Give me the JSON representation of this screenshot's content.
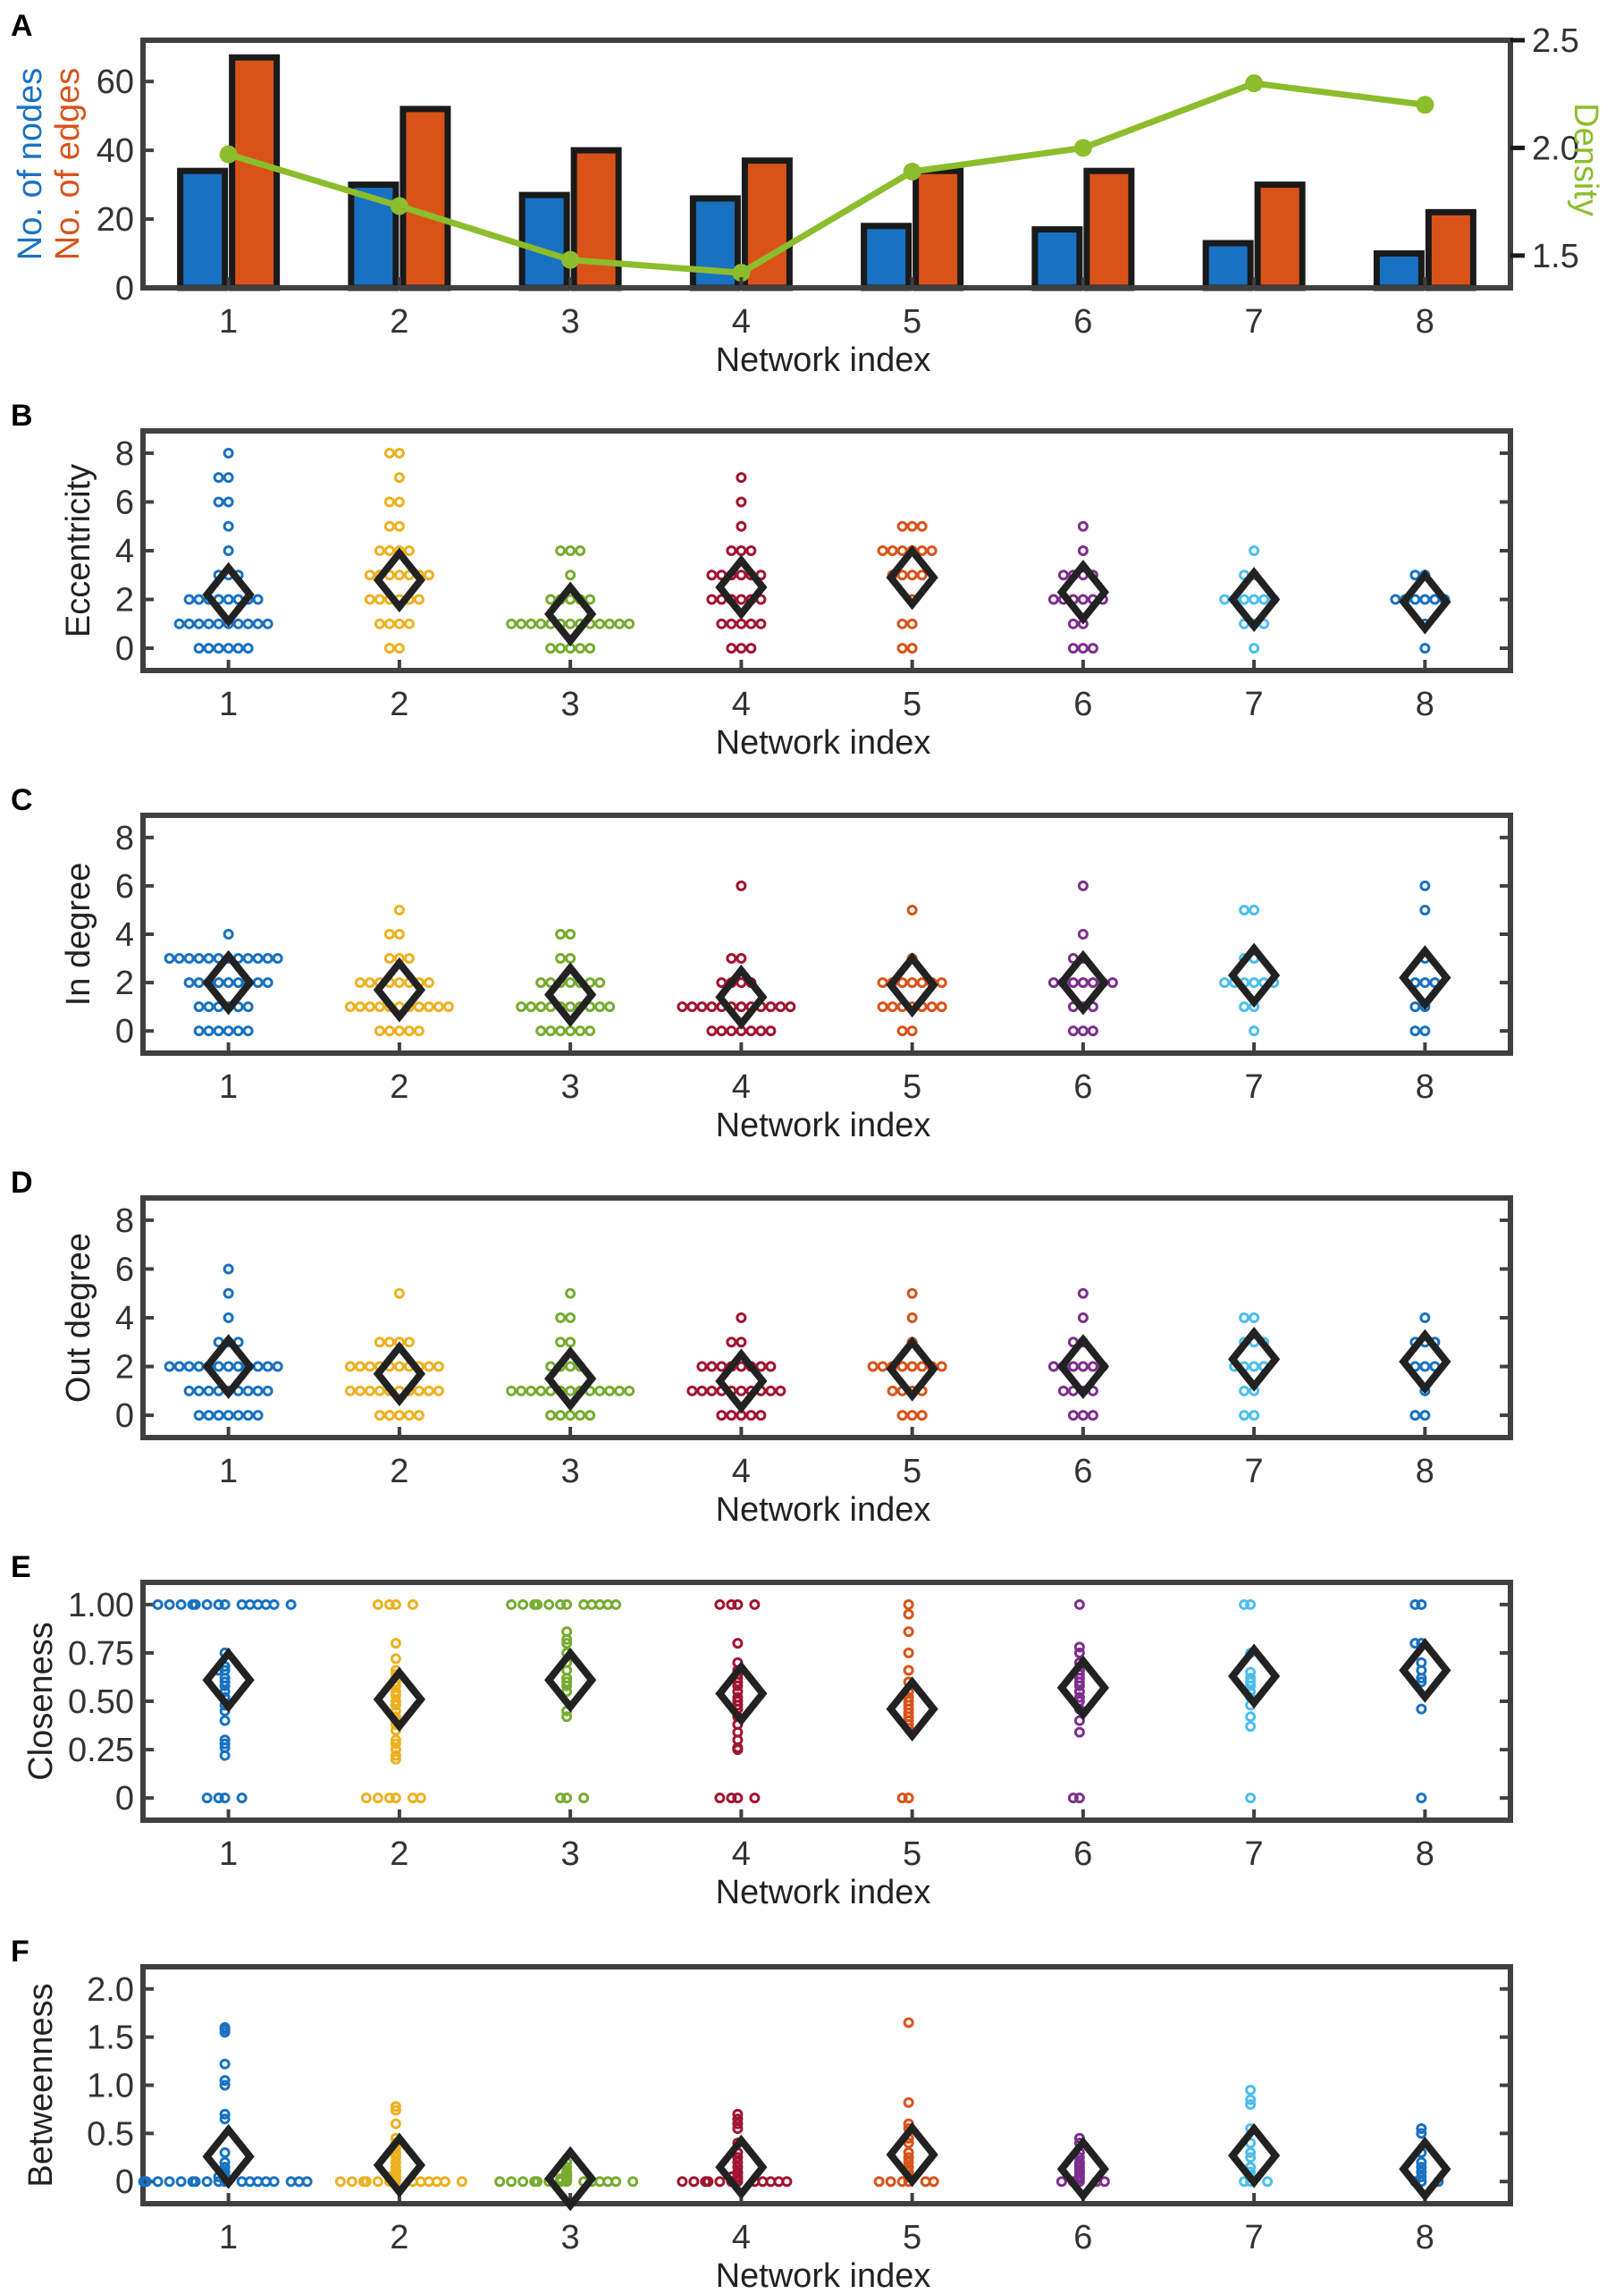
{
  "chart_data": [
    {
      "panel": "A",
      "type": "bar+line",
      "categories": [
        "1",
        "2",
        "3",
        "4",
        "5",
        "6",
        "7",
        "8"
      ],
      "series": [
        {
          "name": "No. of nodes",
          "color": "#1872c1",
          "values": [
            34,
            30,
            27,
            26,
            18,
            17,
            13,
            10
          ]
        },
        {
          "name": "No. of edges",
          "color": "#d95319",
          "values": [
            67,
            52,
            40,
            37,
            34,
            34,
            30,
            22
          ]
        },
        {
          "name": "Density",
          "color": "#8cbd2c",
          "axis": "right",
          "values": [
            1.97,
            1.73,
            1.48,
            1.42,
            1.89,
            2.0,
            2.3,
            2.2
          ]
        }
      ],
      "xlabel": "Network index",
      "ylabel_parts": [
        "No. of nodes",
        "No. of edges"
      ],
      "ylabel_right": "Density",
      "ylim": [
        0,
        72
      ],
      "yticks": [
        "0",
        "20",
        "40",
        "60"
      ],
      "ylim_right": [
        1.35,
        2.5
      ],
      "yticks_right": [
        "1.5",
        "2.0",
        "2.5"
      ]
    },
    {
      "panel": "B",
      "type": "scatter",
      "ylabel": "Eccentricity",
      "xlabel": "Network index",
      "categories": [
        "1",
        "2",
        "3",
        "4",
        "5",
        "6",
        "7",
        "8"
      ],
      "ylim": [
        -0.4,
        8.4
      ],
      "yticks": [
        "0",
        "2",
        "4",
        "6",
        "8"
      ],
      "means": [
        2.2,
        2.8,
        1.4,
        2.5,
        2.9,
        2.3,
        2.0,
        1.9
      ],
      "points": [
        [
          8,
          7,
          7,
          6,
          6,
          5,
          4,
          3,
          3,
          3,
          2,
          2,
          2,
          2,
          2,
          2,
          2,
          2,
          1,
          1,
          1,
          1,
          1,
          1,
          1,
          1,
          1,
          1,
          0,
          0,
          0,
          0,
          0,
          0
        ],
        [
          8,
          8,
          7,
          6,
          6,
          5,
          5,
          4,
          4,
          4,
          4,
          3,
          3,
          3,
          3,
          3,
          3,
          3,
          2,
          2,
          2,
          2,
          2,
          2,
          1,
          1,
          1,
          1,
          0,
          0
        ],
        [
          4,
          4,
          4,
          3,
          2,
          2,
          2,
          2,
          2,
          1,
          1,
          1,
          1,
          1,
          1,
          1,
          1,
          1,
          1,
          1,
          1,
          1,
          0,
          0,
          0,
          0,
          0
        ],
        [
          7,
          6,
          5,
          4,
          4,
          4,
          3,
          3,
          3,
          3,
          3,
          3,
          2,
          2,
          2,
          2,
          2,
          2,
          1,
          1,
          1,
          1,
          1,
          0,
          0,
          0
        ],
        [
          5,
          5,
          5,
          4,
          4,
          4,
          4,
          4,
          4,
          3,
          3,
          3,
          3,
          2,
          1,
          1,
          0,
          0
        ],
        [
          5,
          4,
          3,
          3,
          3,
          3,
          2,
          2,
          2,
          2,
          2,
          2,
          1,
          1,
          0,
          0,
          0
        ],
        [
          4,
          3,
          3,
          2,
          2,
          2,
          2,
          2,
          2,
          1,
          1,
          1,
          0
        ],
        [
          3,
          3,
          2,
          2,
          2,
          2,
          2,
          2,
          1,
          0
        ]
      ]
    },
    {
      "panel": "C",
      "type": "scatter",
      "ylabel": "In degree",
      "xlabel": "Network index",
      "categories": [
        "1",
        "2",
        "3",
        "4",
        "5",
        "6",
        "7",
        "8"
      ],
      "ylim": [
        -0.4,
        8.4
      ],
      "yticks": [
        "0",
        "2",
        "4",
        "6",
        "8"
      ],
      "means": [
        2.0,
        1.7,
        1.5,
        1.4,
        1.9,
        2.0,
        2.3,
        2.2
      ],
      "points": [
        [
          4,
          3,
          3,
          3,
          3,
          3,
          3,
          3,
          3,
          3,
          3,
          3,
          3,
          2,
          2,
          2,
          2,
          2,
          2,
          2,
          2,
          2,
          1,
          1,
          1,
          1,
          1,
          1,
          0,
          0,
          0,
          0,
          0,
          0
        ],
        [
          5,
          4,
          4,
          3,
          3,
          3,
          2,
          2,
          2,
          2,
          2,
          2,
          2,
          2,
          1,
          1,
          1,
          1,
          1,
          1,
          1,
          1,
          1,
          1,
          1,
          0,
          0,
          0,
          0,
          0
        ],
        [
          4,
          4,
          3,
          3,
          2,
          2,
          2,
          2,
          2,
          2,
          2,
          1,
          1,
          1,
          1,
          1,
          1,
          1,
          1,
          1,
          1,
          0,
          0,
          0,
          0,
          0,
          0
        ],
        [
          6,
          3,
          3,
          2,
          2,
          2,
          2,
          1,
          1,
          1,
          1,
          1,
          1,
          1,
          1,
          1,
          1,
          1,
          1,
          0,
          0,
          0,
          0,
          0,
          0,
          0
        ],
        [
          5,
          3,
          2,
          2,
          2,
          2,
          2,
          2,
          2,
          1,
          1,
          1,
          1,
          1,
          1,
          1,
          0,
          0
        ],
        [
          6,
          4,
          3,
          3,
          2,
          2,
          2,
          2,
          2,
          2,
          2,
          1,
          1,
          1,
          0,
          0,
          0
        ],
        [
          5,
          5,
          3,
          3,
          2,
          2,
          2,
          2,
          2,
          2,
          1,
          1,
          0
        ],
        [
          6,
          5,
          3,
          2,
          2,
          2,
          1,
          1,
          0,
          0
        ]
      ]
    },
    {
      "panel": "D",
      "type": "scatter",
      "ylabel": "Out degree",
      "xlabel": "Network index",
      "categories": [
        "1",
        "2",
        "3",
        "4",
        "5",
        "6",
        "7",
        "8"
      ],
      "ylim": [
        -0.4,
        8.4
      ],
      "yticks": [
        "0",
        "2",
        "4",
        "6",
        "8"
      ],
      "means": [
        2.0,
        1.7,
        1.5,
        1.4,
        1.9,
        2.0,
        2.3,
        2.2
      ],
      "points": [
        [
          6,
          5,
          4,
          3,
          3,
          3,
          2,
          2,
          2,
          2,
          2,
          2,
          2,
          2,
          2,
          2,
          2,
          2,
          1,
          1,
          1,
          1,
          1,
          1,
          1,
          1,
          1,
          0,
          0,
          0,
          0,
          0,
          0,
          0
        ],
        [
          5,
          3,
          3,
          3,
          3,
          2,
          2,
          2,
          2,
          2,
          2,
          2,
          2,
          2,
          2,
          1,
          1,
          1,
          1,
          1,
          1,
          1,
          1,
          1,
          1,
          0,
          0,
          0,
          0,
          0
        ],
        [
          5,
          4,
          4,
          3,
          3,
          2,
          2,
          2,
          2,
          1,
          1,
          1,
          1,
          1,
          1,
          1,
          1,
          1,
          1,
          1,
          1,
          1,
          0,
          0,
          0,
          0,
          0
        ],
        [
          4,
          3,
          3,
          2,
          2,
          2,
          2,
          2,
          2,
          2,
          2,
          1,
          1,
          1,
          1,
          1,
          1,
          1,
          1,
          1,
          1,
          0,
          0,
          0,
          0,
          0
        ],
        [
          5,
          4,
          3,
          2,
          2,
          2,
          2,
          2,
          2,
          2,
          2,
          1,
          1,
          1,
          1,
          0,
          0,
          0
        ],
        [
          5,
          4,
          3,
          3,
          2,
          2,
          2,
          2,
          2,
          2,
          1,
          1,
          1,
          1,
          0,
          0,
          0
        ],
        [
          4,
          4,
          3,
          3,
          3,
          2,
          2,
          2,
          2,
          1,
          1,
          0,
          0
        ],
        [
          4,
          3,
          3,
          3,
          2,
          2,
          2,
          1,
          0,
          0
        ]
      ]
    },
    {
      "panel": "E",
      "type": "scatter",
      "ylabel": "Closeness",
      "xlabel": "Network index",
      "categories": [
        "1",
        "2",
        "3",
        "4",
        "5",
        "6",
        "7",
        "8"
      ],
      "ylim": [
        -0.05,
        1.05
      ],
      "yticks": [
        "0",
        "0.25",
        "0.50",
        "0.75",
        "1.00"
      ],
      "means": [
        0.61,
        0.51,
        0.61,
        0.54,
        0.46,
        0.57,
        0.63,
        0.66
      ],
      "points": [
        [
          1,
          1,
          1,
          1,
          1,
          1,
          1,
          1,
          1,
          1,
          1,
          1,
          1,
          1,
          0.75,
          0.68,
          0.66,
          0.66,
          0.62,
          0.6,
          0.58,
          0.55,
          0.52,
          0.48,
          0.45,
          0.4,
          0.3,
          0.28,
          0.26,
          0.22,
          0,
          0,
          0,
          0
        ],
        [
          1,
          1,
          1,
          1,
          0.8,
          0.72,
          0.66,
          0.64,
          0.6,
          0.58,
          0.55,
          0.53,
          0.5,
          0.48,
          0.45,
          0.42,
          0.4,
          0.38,
          0.35,
          0.3,
          0.28,
          0.25,
          0.22,
          0.2,
          0,
          0,
          0,
          0,
          0,
          0
        ],
        [
          1,
          1,
          1,
          1,
          1,
          1,
          1,
          1,
          1,
          1,
          1,
          1,
          0.86,
          0.82,
          0.8,
          0.75,
          0.7,
          0.66,
          0.62,
          0.6,
          0.58,
          0.55,
          0.45,
          0.42,
          0,
          0,
          0
        ],
        [
          1,
          1,
          1,
          1,
          0.8,
          0.7,
          0.66,
          0.64,
          0.62,
          0.6,
          0.58,
          0.55,
          0.52,
          0.5,
          0.48,
          0.46,
          0.42,
          0.38,
          0.34,
          0.3,
          0.26,
          0.25,
          0,
          0,
          0,
          0
        ],
        [
          1,
          0.95,
          0.86,
          0.75,
          0.66,
          0.6,
          0.55,
          0.52,
          0.5,
          0.48,
          0.46,
          0.44,
          0.42,
          0.4,
          0.38,
          0.36,
          0,
          0
        ],
        [
          1,
          0.78,
          0.75,
          0.7,
          0.66,
          0.64,
          0.62,
          0.6,
          0.58,
          0.55,
          0.52,
          0.5,
          0.46,
          0.4,
          0.34,
          0,
          0
        ],
        [
          1,
          1,
          0.75,
          0.65,
          0.62,
          0.6,
          0.58,
          0.55,
          0.52,
          0.48,
          0.42,
          0.37,
          0
        ],
        [
          1,
          1,
          0.8,
          0.8,
          0.7,
          0.66,
          0.62,
          0.6,
          0.46,
          0
        ]
      ]
    },
    {
      "panel": "F",
      "type": "scatter",
      "ylabel": "Betweenness",
      "xlabel": "Network index",
      "categories": [
        "1",
        "2",
        "3",
        "4",
        "5",
        "6",
        "7",
        "8"
      ],
      "ylim": [
        -0.1,
        2.1
      ],
      "yticks": [
        "0",
        "0.5",
        "1.0",
        "1.5",
        "2.0"
      ],
      "means": [
        0.26,
        0.17,
        0.03,
        0.15,
        0.28,
        0.13,
        0.27,
        0.13
      ],
      "points": [
        [
          1.6,
          1.58,
          1.55,
          1.22,
          1.05,
          1.0,
          0.7,
          0.65,
          0.3,
          0.2,
          0.15,
          0.1,
          0.08,
          0.05,
          0.05,
          0.02,
          0,
          0,
          0,
          0,
          0,
          0,
          0,
          0,
          0,
          0,
          0,
          0,
          0,
          0,
          0,
          0,
          0,
          0
        ],
        [
          0.78,
          0.74,
          0.6,
          0.45,
          0.4,
          0.35,
          0.3,
          0.28,
          0.25,
          0.2,
          0.15,
          0.12,
          0.1,
          0.08,
          0.05,
          0.05,
          0.03,
          0,
          0,
          0,
          0,
          0,
          0,
          0,
          0,
          0,
          0,
          0,
          0,
          0
        ],
        [
          0.2,
          0.15,
          0.1,
          0.08,
          0.06,
          0.05,
          0.04,
          0.03,
          0.03,
          0.02,
          0.02,
          0.01,
          0.01,
          0,
          0,
          0,
          0,
          0,
          0,
          0,
          0,
          0,
          0,
          0,
          0,
          0,
          0
        ],
        [
          0.7,
          0.65,
          0.6,
          0.55,
          0.4,
          0.3,
          0.25,
          0.2,
          0.15,
          0.1,
          0.08,
          0.05,
          0.05,
          0.03,
          0,
          0,
          0,
          0,
          0,
          0,
          0,
          0,
          0,
          0,
          0,
          0
        ],
        [
          1.65,
          0.82,
          0.6,
          0.55,
          0.45,
          0.4,
          0.3,
          0.25,
          0.2,
          0.15,
          0.1,
          0.05,
          0,
          0,
          0,
          0,
          0,
          0
        ],
        [
          0.45,
          0.4,
          0.3,
          0.25,
          0.2,
          0.18,
          0.15,
          0.12,
          0.1,
          0.08,
          0.05,
          0.03,
          0,
          0,
          0,
          0,
          0
        ],
        [
          0.95,
          0.85,
          0.8,
          0.55,
          0.4,
          0.3,
          0.25,
          0.15,
          0.1,
          0.05,
          0,
          0,
          0
        ],
        [
          0.55,
          0.5,
          0.3,
          0.2,
          0.15,
          0.1,
          0.05,
          0,
          0,
          0
        ]
      ]
    }
  ],
  "scatter_colors": [
    "#1872c1",
    "#edb120",
    "#77ac30",
    "#a2142f",
    "#d95319",
    "#7e2f8e",
    "#4dbeee",
    "#1872c1"
  ],
  "mean_color": "#222222",
  "axis_color": "#404040"
}
